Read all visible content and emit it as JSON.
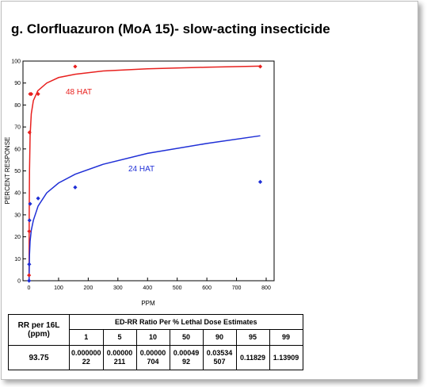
{
  "title": "g. Clorfluazuron (MoA 15)- slow-acting insecticide",
  "chart_data": {
    "type": "scatter",
    "xlabel": "PPM",
    "ylabel": "PERCENT  RESPONSE",
    "xlim": [
      0,
      800
    ],
    "ylim": [
      0,
      100
    ],
    "x_ticks": [
      "0",
      "100",
      "200",
      "300",
      "400",
      "500",
      "600",
      "700",
      "800"
    ],
    "y_ticks": [
      "0",
      "10",
      "20",
      "30",
      "40",
      "50",
      "60",
      "70",
      "80",
      "90",
      "100"
    ],
    "grid": false,
    "series": [
      {
        "name": "48 HAT",
        "color": "#e8201e",
        "points": [
          [
            0.5,
            2.5
          ],
          [
            1,
            22.5
          ],
          [
            2,
            67.5
          ],
          [
            4,
            85
          ],
          [
            8,
            85
          ],
          [
            31,
            85
          ],
          [
            156,
            97.5
          ],
          [
            780,
            97.5
          ]
        ],
        "curve": [
          [
            0.5,
            2.5
          ],
          [
            1,
            30
          ],
          [
            2,
            50
          ],
          [
            4,
            66
          ],
          [
            8,
            76
          ],
          [
            15,
            82
          ],
          [
            30,
            86.5
          ],
          [
            60,
            90
          ],
          [
            100,
            92.5
          ],
          [
            156,
            94
          ],
          [
            250,
            95.5
          ],
          [
            400,
            96.5
          ],
          [
            600,
            97.2
          ],
          [
            780,
            97.7
          ]
        ]
      },
      {
        "name": "24 HAT",
        "color": "#1f2fd6",
        "points": [
          [
            0.5,
            0
          ],
          [
            1,
            7.5
          ],
          [
            2,
            27.5
          ],
          [
            4,
            35
          ],
          [
            31,
            37.5
          ],
          [
            156,
            42.5
          ],
          [
            780,
            45
          ]
        ],
        "curve": [
          [
            0.5,
            0
          ],
          [
            2,
            12
          ],
          [
            4,
            18
          ],
          [
            8,
            23
          ],
          [
            15,
            27.5
          ],
          [
            31,
            34
          ],
          [
            60,
            40
          ],
          [
            100,
            44.5
          ],
          [
            156,
            48.5
          ],
          [
            250,
            53
          ],
          [
            400,
            58
          ],
          [
            600,
            62.5
          ],
          [
            780,
            66
          ]
        ]
      }
    ]
  },
  "table": {
    "rr_header": "RR per 16L (ppm)",
    "group_header": "ED-RR  Ratio Per % Lethal Dose Estimates",
    "columns": [
      "1",
      "5",
      "10",
      "50",
      "90",
      "95",
      "99"
    ],
    "rr_value": "93.75",
    "values": [
      "0.000000 22",
      "0.00000 211",
      "0.00000 704",
      "0.00049 92",
      "0.03534 507",
      "0.11829",
      "1.13909"
    ]
  }
}
